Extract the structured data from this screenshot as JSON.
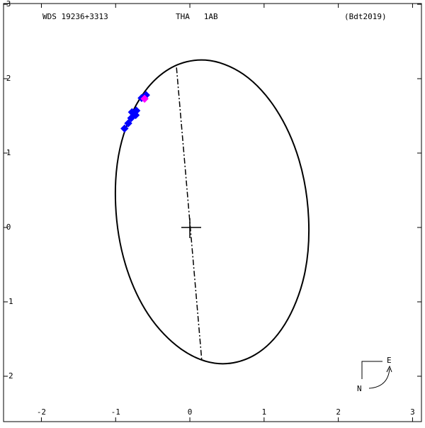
{
  "chart_data": {
    "type": "orbit",
    "title": "WDS 19236+3313",
    "subtitle": "THA   1AB",
    "annotation": "(Bdt2019)",
    "compass": {
      "east": "E",
      "north": "N"
    },
    "xlim": [
      -2.51,
      3.12
    ],
    "ylim": [
      -2.61,
      3.01
    ],
    "xticks": [
      -2,
      -1,
      0,
      1,
      2,
      3
    ],
    "yticks": [
      -2,
      -1,
      0,
      1,
      2,
      3
    ],
    "series": [
      {
        "type": "line",
        "color": "#000000",
        "closed": true,
        "x": [
          0.21,
          -0.28,
          -0.68,
          -0.94,
          -1.0,
          -0.87,
          -0.56,
          -0.11,
          0.39,
          0.88,
          1.28,
          1.54,
          1.6,
          1.47,
          1.16,
          0.72
        ],
        "y": [
          2.25,
          2.13,
          1.72,
          1.07,
          0.3,
          -0.49,
          -1.17,
          -1.64,
          -1.83,
          -1.71,
          -1.3,
          -0.65,
          0.12,
          0.91,
          1.59,
          2.06
        ]
      },
      {
        "type": "line",
        "color": "#000000",
        "dash": true,
        "x": [
          -0.18,
          0.16
        ],
        "y": [
          2.15,
          -1.78
        ]
      },
      {
        "type": "scatter",
        "color": "#0000ff",
        "x": [
          -0.88,
          -0.83,
          -0.79,
          -0.76,
          -0.73,
          -0.78,
          -0.72,
          -0.65,
          -0.59,
          -0.62
        ],
        "y": [
          1.33,
          1.4,
          1.47,
          1.53,
          1.51,
          1.55,
          1.57,
          1.74,
          1.78,
          1.75
        ]
      },
      {
        "type": "scatter",
        "color": "#ff00ff",
        "x": [
          -0.61
        ],
        "y": [
          1.73
        ]
      }
    ]
  }
}
